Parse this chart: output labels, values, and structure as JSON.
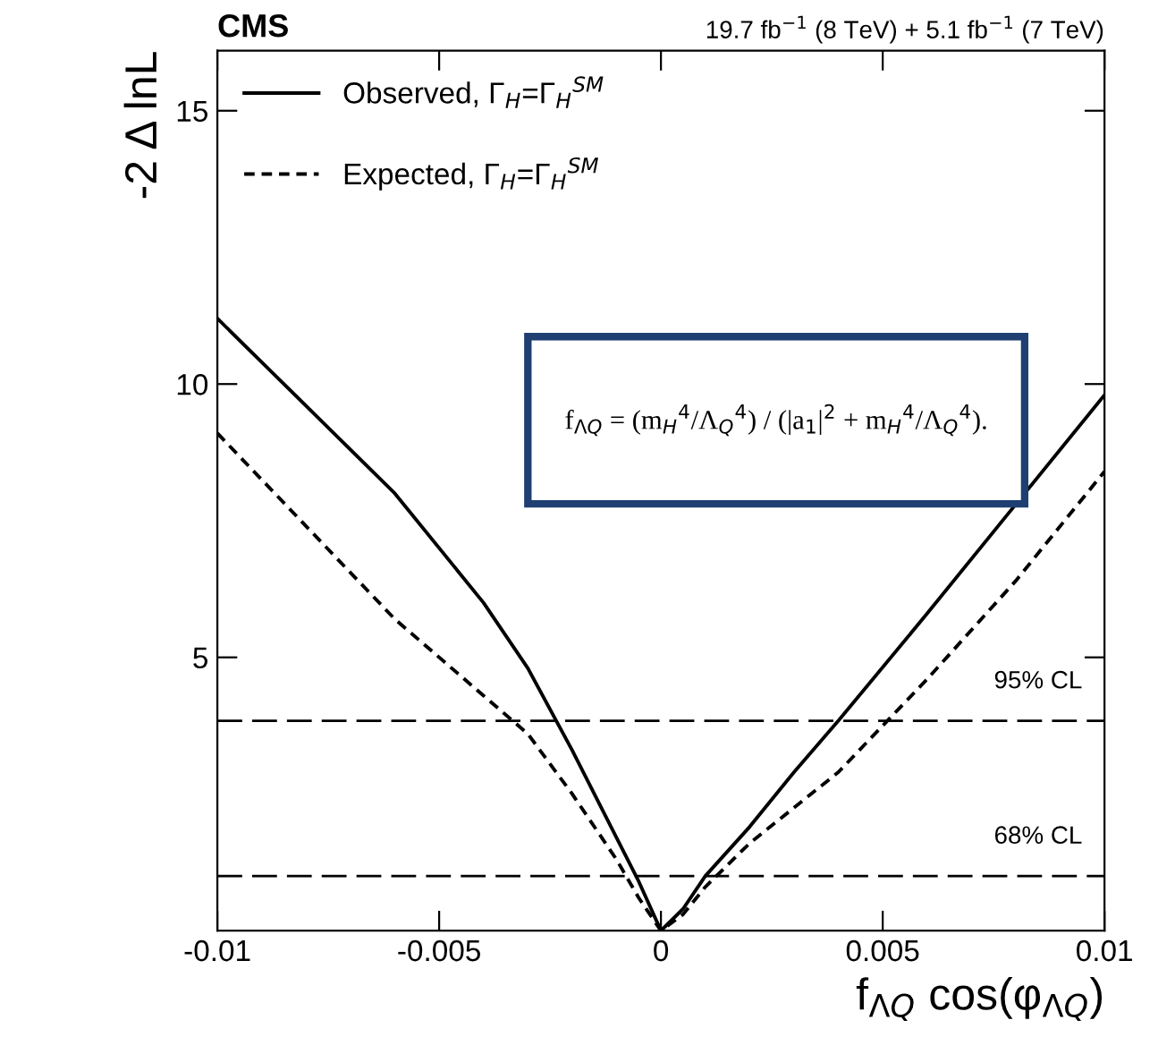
{
  "chart_data": {
    "type": "line",
    "xlabel": "f$_{ΛQ}$ cos(φ$_{ΛQ}$)",
    "ylabel": "-2 Δ lnL",
    "xlim": [
      -0.01,
      0.01
    ],
    "ylim": [
      0,
      16.1
    ],
    "xticks": [
      {
        "value": -0.01,
        "label": "-0.01"
      },
      {
        "value": -0.005,
        "label": "-0.005"
      },
      0,
      0.005,
      0.01
    ],
    "yticks": [
      5,
      10,
      15
    ],
    "series": [
      {
        "name": "Observed, Γ$_{H}$=Γ$_{H}$$^{SM}$",
        "color": "#000000",
        "line_style": "solid",
        "x": [
          -0.01,
          -0.008,
          -0.006,
          -0.004,
          -0.003,
          -0.002,
          -0.001,
          -0.0005,
          0,
          0.0005,
          0.001,
          0.002,
          0.003,
          0.004,
          0.006,
          0.008,
          0.01
        ],
        "values": [
          11.2,
          9.6,
          8.0,
          6.0,
          4.8,
          3.3,
          1.7,
          0.9,
          0,
          0.4,
          1.0,
          1.9,
          2.9,
          3.84,
          5.8,
          7.8,
          9.8
        ]
      },
      {
        "name": "Expected, Γ$_{H}$=Γ$_{H}$$^{SM}$",
        "color": "#000000",
        "line_style": "dotted",
        "x": [
          -0.01,
          -0.008,
          -0.006,
          -0.004,
          -0.003,
          -0.002,
          -0.001,
          -0.0005,
          0,
          0.0005,
          0.001,
          0.002,
          0.004,
          0.006,
          0.008,
          0.01
        ],
        "values": [
          9.1,
          7.4,
          5.7,
          4.3,
          3.6,
          2.5,
          1.3,
          0.6,
          0,
          0.3,
          0.8,
          1.6,
          2.9,
          4.6,
          6.4,
          8.4
        ]
      }
    ],
    "ref_lines": [
      {
        "axis": "y",
        "value": 3.84,
        "label": "95% CL",
        "line_style": "dashed",
        "color": "#000000"
      },
      {
        "axis": "y",
        "value": 1.0,
        "label": "68% CL",
        "line_style": "dashed",
        "color": "#000000"
      }
    ],
    "annotations": [
      "CMS",
      "19.7 fb$^{−1}$ (8 TeV) + 5.1 fb$^{−1}$ (7 TeV)",
      "f$_{ΛQ}$ = (m$_{H}$$^{4}$/Λ$_{Q}$$^{4}$) / (|a$_{1}$|$^{2}$ + m$_{H}$$^{4}$/Λ$_{Q}$$^{4}$)."
    ],
    "legend": "top left",
    "grid": false
  }
}
